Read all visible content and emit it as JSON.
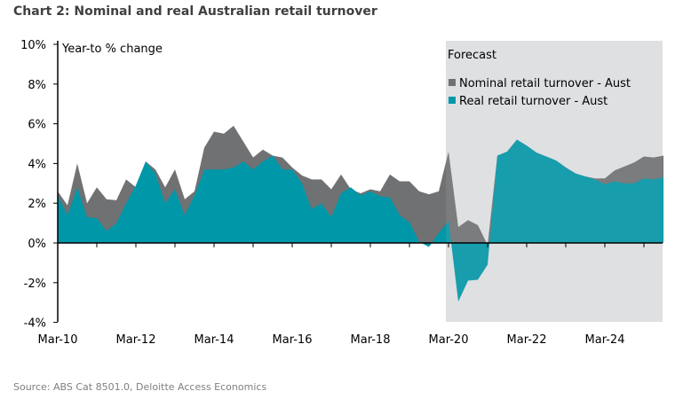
{
  "chart_data": {
    "type": "area",
    "title": "Chart 2:  Nominal and real Australian retail turnover",
    "ylabel": "Year-to % change",
    "xlabel": "",
    "ylim": [
      -4,
      10
    ],
    "yticks": [
      "-4%",
      "-2%",
      "0%",
      "2%",
      "4%",
      "6%",
      "8%",
      "10%"
    ],
    "ytick_values": [
      -4,
      -2,
      0,
      2,
      4,
      6,
      8,
      10
    ],
    "xtick_labels": [
      "Mar-10",
      "Mar-12",
      "Mar-14",
      "Mar-16",
      "Mar-18",
      "Mar-20",
      "Mar-22",
      "Mar-24"
    ],
    "grid": false,
    "legend_placement": "top-right",
    "forecast_label": "Forecast",
    "forecast_start": "Mar-20",
    "forecast_color": "#e2e3e5",
    "x": [
      "Mar-10",
      "Jun-10",
      "Sep-10",
      "Dec-10",
      "Mar-11",
      "Jun-11",
      "Sep-11",
      "Dec-11",
      "Mar-12",
      "Jun-12",
      "Sep-12",
      "Dec-12",
      "Mar-13",
      "Jun-13",
      "Sep-13",
      "Dec-13",
      "Mar-14",
      "Jun-14",
      "Sep-14",
      "Dec-14",
      "Mar-15",
      "Jun-15",
      "Sep-15",
      "Dec-15",
      "Mar-16",
      "Jun-16",
      "Sep-16",
      "Dec-16",
      "Mar-17",
      "Jun-17",
      "Sep-17",
      "Dec-17",
      "Mar-18",
      "Jun-18",
      "Sep-18",
      "Dec-18",
      "Mar-19",
      "Jun-19",
      "Sep-19",
      "Dec-19",
      "Mar-20",
      "Jun-20",
      "Sep-20",
      "Dec-20",
      "Mar-21",
      "Jun-21",
      "Sep-21",
      "Dec-21",
      "Mar-22",
      "Jun-22",
      "Sep-22",
      "Dec-22",
      "Mar-23",
      "Jun-23",
      "Sep-23",
      "Dec-23",
      "Mar-24",
      "Jun-24",
      "Sep-24",
      "Dec-24",
      "Mar-25",
      "Jun-25",
      "Sep-25"
    ],
    "series": [
      {
        "name": "Nominal retail turnover - Aust",
        "color": "#707173",
        "values": [
          2.6,
          1.9,
          4.0,
          2.0,
          2.8,
          2.2,
          2.15,
          3.2,
          2.8,
          4.1,
          3.7,
          2.8,
          3.7,
          2.2,
          2.6,
          4.8,
          5.6,
          5.5,
          5.9,
          5.1,
          4.3,
          4.7,
          4.4,
          4.3,
          3.8,
          3.4,
          3.2,
          3.2,
          2.7,
          3.45,
          2.7,
          2.5,
          2.7,
          2.6,
          3.45,
          3.1,
          3.1,
          2.6,
          2.45,
          2.6,
          4.6,
          0.8,
          1.15,
          0.9,
          -0.1,
          4.4,
          4.6,
          5.2,
          4.9,
          4.55,
          4.35,
          4.15,
          3.8,
          3.5,
          3.35,
          3.25,
          3.25,
          3.65,
          3.85,
          4.05,
          4.35,
          4.3,
          4.4
        ]
      },
      {
        "name": "Real retail turnover - Aust",
        "color": "#0097a9",
        "values": [
          2.4,
          1.4,
          2.8,
          1.3,
          1.25,
          0.6,
          1.0,
          2.0,
          2.9,
          4.1,
          3.5,
          2.0,
          2.7,
          1.4,
          2.4,
          3.7,
          3.7,
          3.7,
          3.8,
          4.1,
          3.7,
          4.1,
          4.4,
          3.7,
          3.7,
          3.0,
          1.7,
          2.0,
          1.3,
          2.5,
          2.8,
          2.4,
          2.6,
          2.35,
          2.3,
          1.4,
          1.05,
          0.05,
          -0.2,
          0.5,
          1.1,
          -2.95,
          -1.9,
          -1.85,
          -1.1,
          4.4,
          4.6,
          5.2,
          4.9,
          4.55,
          4.35,
          4.15,
          3.8,
          3.5,
          3.35,
          3.2,
          2.95,
          3.1,
          3.0,
          3.0,
          3.25,
          3.2,
          3.3
        ]
      }
    ]
  },
  "source": "Source: ABS Cat 8501.0, Deloitte Access Economics"
}
